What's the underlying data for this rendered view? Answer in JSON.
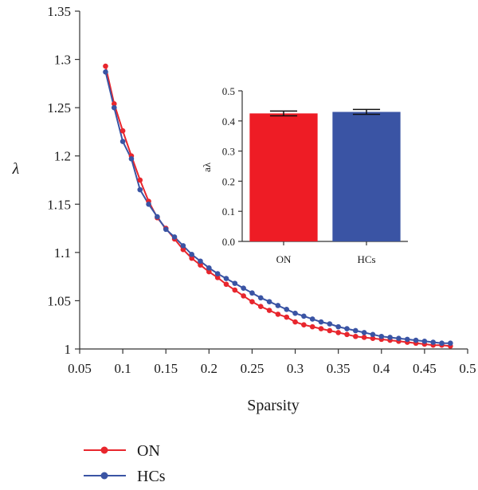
{
  "chart_data": [
    {
      "type": "line",
      "xlabel": "Sparsity",
      "ylabel": "λ",
      "xlim": [
        0.05,
        0.5
      ],
      "ylim": [
        1.0,
        1.35
      ],
      "xticks": [
        "0.05",
        "0.1",
        "0.15",
        "0.2",
        "0.25",
        "0.3",
        "0.35",
        "0.4",
        "0.45",
        "0.5"
      ],
      "yticks": [
        "1",
        "1.05",
        "1.1",
        "1.15",
        "1.2",
        "1.25",
        "1.3",
        "1.35"
      ],
      "grid": false,
      "legend": "bottom-left",
      "x": [
        0.08,
        0.09,
        0.1,
        0.11,
        0.12,
        0.13,
        0.14,
        0.15,
        0.16,
        0.17,
        0.18,
        0.19,
        0.2,
        0.21,
        0.22,
        0.23,
        0.24,
        0.25,
        0.26,
        0.27,
        0.28,
        0.29,
        0.3,
        0.31,
        0.32,
        0.33,
        0.34,
        0.35,
        0.36,
        0.37,
        0.38,
        0.39,
        0.4,
        0.41,
        0.42,
        0.43,
        0.44,
        0.45,
        0.46,
        0.47,
        0.48
      ],
      "series": [
        {
          "name": "ON",
          "color": "#e8262d",
          "values": [
            1.293,
            1.254,
            1.226,
            1.2,
            1.175,
            1.153,
            1.136,
            1.125,
            1.114,
            1.103,
            1.094,
            1.087,
            1.08,
            1.074,
            1.067,
            1.061,
            1.055,
            1.049,
            1.044,
            1.04,
            1.036,
            1.033,
            1.028,
            1.025,
            1.023,
            1.021,
            1.019,
            1.017,
            1.015,
            1.013,
            1.012,
            1.011,
            1.01,
            1.009,
            1.008,
            1.007,
            1.006,
            1.005,
            1.004,
            1.004,
            1.003
          ]
        },
        {
          "name": "HCs",
          "color": "#3a54a4",
          "values": [
            1.287,
            1.25,
            1.215,
            1.197,
            1.165,
            1.15,
            1.137,
            1.124,
            1.116,
            1.107,
            1.098,
            1.091,
            1.084,
            1.078,
            1.073,
            1.068,
            1.063,
            1.058,
            1.053,
            1.049,
            1.045,
            1.041,
            1.037,
            1.034,
            1.031,
            1.028,
            1.026,
            1.023,
            1.021,
            1.019,
            1.017,
            1.015,
            1.013,
            1.012,
            1.011,
            1.01,
            1.009,
            1.008,
            1.007,
            1.006,
            1.006
          ]
        }
      ]
    },
    {
      "type": "bar",
      "categories": [
        "ON",
        "HCs"
      ],
      "values": [
        0.425,
        0.43
      ],
      "errors": [
        0.008,
        0.008
      ],
      "colors": [
        "#ee1c25",
        "#3a54a4"
      ],
      "ylabel": "aλ",
      "ylim": [
        0,
        0.5
      ],
      "yticks": [
        "0.0",
        "0.1",
        "0.2",
        "0.3",
        "0.4",
        "0.5"
      ]
    }
  ]
}
